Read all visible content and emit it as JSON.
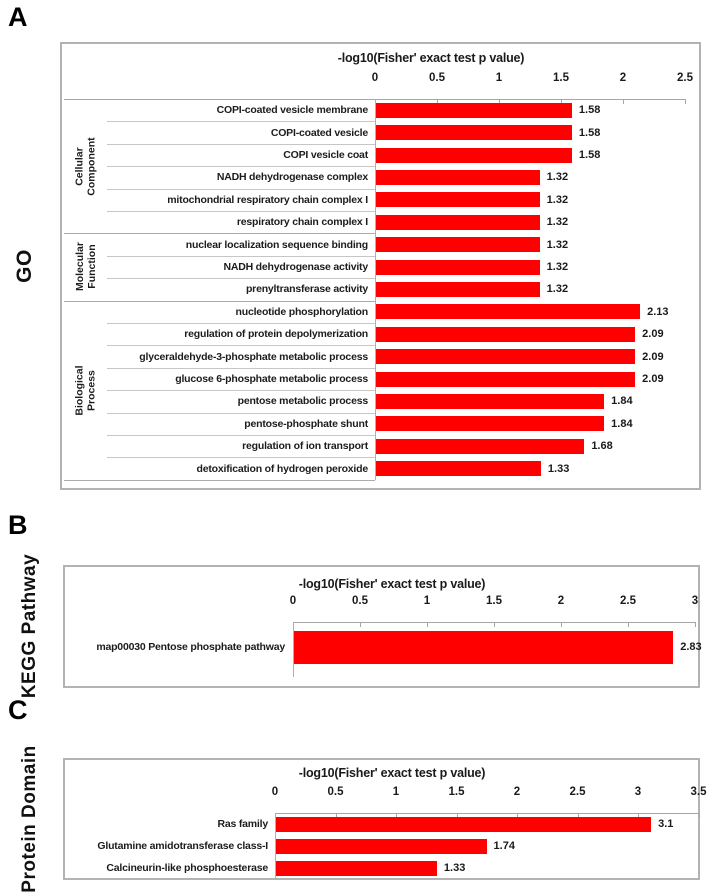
{
  "figure": {
    "axis_title": "-log10(Fisher' exact test p value)",
    "bar_color": "#FF0000",
    "axis_color": "#A6A6A6",
    "text_color": "#1A1A1A"
  },
  "panels": [
    {
      "letter": "A",
      "side_label": "GO",
      "chart_data": {
        "type": "bar",
        "orientation": "horizontal",
        "title": "-log10(Fisher' exact test p value)",
        "xlim": [
          0,
          2.5
        ],
        "ticks": [
          "0",
          "0.5",
          "1",
          "1.5",
          "2",
          "2.5"
        ],
        "legend": "none",
        "grid": "off",
        "groups": [
          {
            "name": "Cellular Component",
            "rows": [
              {
                "label": "COPI-coated vesicle membrane",
                "value": 1.58,
                "value_label": "1.58"
              },
              {
                "label": "COPI-coated vesicle",
                "value": 1.58,
                "value_label": "1.58"
              },
              {
                "label": "COPI vesicle coat",
                "value": 1.58,
                "value_label": "1.58"
              },
              {
                "label": "NADH dehydrogenase complex",
                "value": 1.32,
                "value_label": "1.32"
              },
              {
                "label": "mitochondrial respiratory chain complex I",
                "value": 1.32,
                "value_label": "1.32"
              },
              {
                "label": "respiratory chain complex I",
                "value": 1.32,
                "value_label": "1.32"
              }
            ]
          },
          {
            "name": "Molecular Function",
            "rows": [
              {
                "label": "nuclear localization sequence binding",
                "value": 1.32,
                "value_label": "1.32"
              },
              {
                "label": "NADH dehydrogenase activity",
                "value": 1.32,
                "value_label": "1.32"
              },
              {
                "label": "prenyltransferase activity",
                "value": 1.32,
                "value_label": "1.32"
              }
            ]
          },
          {
            "name": "Biological Process",
            "rows": [
              {
                "label": "nucleotide phosphorylation",
                "value": 2.13,
                "value_label": "2.13"
              },
              {
                "label": "regulation of protein depolymerization",
                "value": 2.09,
                "value_label": "2.09"
              },
              {
                "label": "glyceraldehyde-3-phosphate metabolic process",
                "value": 2.09,
                "value_label": "2.09"
              },
              {
                "label": "glucose 6-phosphate metabolic process",
                "value": 2.09,
                "value_label": "2.09"
              },
              {
                "label": "pentose metabolic process",
                "value": 1.84,
                "value_label": "1.84"
              },
              {
                "label": "pentose-phosphate shunt",
                "value": 1.84,
                "value_label": "1.84"
              },
              {
                "label": "regulation of ion transport",
                "value": 1.68,
                "value_label": "1.68"
              },
              {
                "label": "detoxification of hydrogen peroxide",
                "value": 1.33,
                "value_label": "1.33"
              }
            ]
          }
        ]
      }
    },
    {
      "letter": "B",
      "side_label": "KEGG Pathway",
      "chart_data": {
        "type": "bar",
        "orientation": "horizontal",
        "title": "-log10(Fisher' exact test p value)",
        "xlim": [
          0,
          3
        ],
        "ticks": [
          "0",
          "0.5",
          "1",
          "1.5",
          "2",
          "2.5",
          "3"
        ],
        "legend": "none",
        "grid": "off",
        "rows": [
          {
            "label": "map00030 Pentose phosphate pathway",
            "value": 2.83,
            "value_label": "2.83"
          }
        ]
      }
    },
    {
      "letter": "C",
      "side_label": "Protein Domain",
      "chart_data": {
        "type": "bar",
        "orientation": "horizontal",
        "title": "-log10(Fisher' exact test p value)",
        "xlim": [
          0,
          3.5
        ],
        "ticks": [
          "0",
          "0.5",
          "1",
          "1.5",
          "2",
          "2.5",
          "3",
          "3.5"
        ],
        "legend": "none",
        "grid": "off",
        "rows": [
          {
            "label": "Ras family",
            "value": 3.1,
            "value_label": "3.1"
          },
          {
            "label": "Glutamine amidotransferase  class-I",
            "value": 1.74,
            "value_label": "1.74"
          },
          {
            "label": "Calcineurin-like phosphoesterase",
            "value": 1.33,
            "value_label": "1.33"
          }
        ]
      }
    }
  ]
}
